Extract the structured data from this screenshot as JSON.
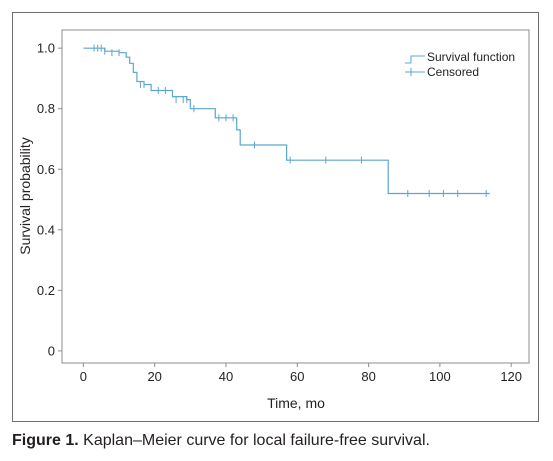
{
  "figure": {
    "label": "Figure 1.",
    "caption": "Kaplan–Meier curve for local failure-free survival."
  },
  "chart_data": {
    "type": "line",
    "subtype": "kaplan-meier step",
    "xlabel": "Time, mo",
    "ylabel": "Survival probability",
    "xlim": [
      -6,
      125
    ],
    "ylim": [
      -0.04,
      1.06
    ],
    "x_ticks": [
      0,
      20,
      40,
      60,
      80,
      100,
      120
    ],
    "y_ticks": [
      0,
      0.2,
      0.4,
      0.6,
      0.8,
      1.0
    ],
    "y_tick_labels": [
      "0",
      "0.2",
      "0.4",
      "0.6",
      "0.8",
      "1.0"
    ],
    "grid": false,
    "legend_position": "top-right",
    "line_color": "#5aa7d0",
    "series": [
      {
        "name": "Survival function",
        "steps": [
          [
            0,
            1.0
          ],
          [
            3,
            1.0
          ],
          [
            6,
            0.99
          ],
          [
            10,
            0.985
          ],
          [
            12,
            0.97
          ],
          [
            13,
            0.95
          ],
          [
            14,
            0.92
          ],
          [
            15,
            0.89
          ],
          [
            17,
            0.88
          ],
          [
            19,
            0.86
          ],
          [
            24,
            0.86
          ],
          [
            25,
            0.84
          ],
          [
            29,
            0.83
          ],
          [
            30,
            0.8
          ],
          [
            36,
            0.8
          ],
          [
            37,
            0.77
          ],
          [
            42,
            0.77
          ],
          [
            43,
            0.73
          ],
          [
            44,
            0.68
          ],
          [
            56,
            0.68
          ],
          [
            57,
            0.63
          ],
          [
            85,
            0.63
          ],
          [
            85.5,
            0.52
          ],
          [
            114,
            0.52
          ]
        ]
      },
      {
        "name": "Censored",
        "points": [
          [
            3,
            1.0
          ],
          [
            4,
            1.0
          ],
          [
            5,
            1.0
          ],
          [
            6,
            0.99
          ],
          [
            8,
            0.985
          ],
          [
            10,
            0.985
          ],
          [
            16,
            0.88
          ],
          [
            17,
            0.88
          ],
          [
            21,
            0.86
          ],
          [
            23,
            0.86
          ],
          [
            26,
            0.83
          ],
          [
            28,
            0.83
          ],
          [
            29,
            0.83
          ],
          [
            31,
            0.8
          ],
          [
            38,
            0.77
          ],
          [
            40,
            0.77
          ],
          [
            42,
            0.77
          ],
          [
            48,
            0.68
          ],
          [
            58,
            0.63
          ],
          [
            68,
            0.63
          ],
          [
            78,
            0.63
          ],
          [
            91,
            0.52
          ],
          [
            97,
            0.52
          ],
          [
            101,
            0.52
          ],
          [
            105,
            0.52
          ],
          [
            113,
            0.52
          ]
        ]
      }
    ]
  }
}
